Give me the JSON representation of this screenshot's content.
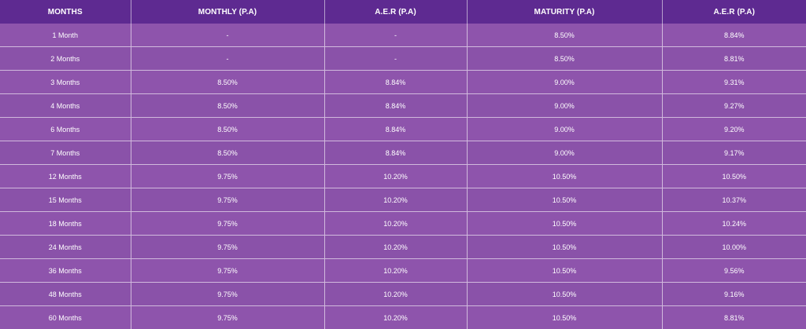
{
  "table": {
    "headers": [
      "MONTHS",
      "MONTHLY (P.A)",
      "A.E.R (P.A)",
      "MATURITY (P.A)",
      "A.E.R (P.A)"
    ],
    "rows": [
      [
        "1 Month",
        "-",
        "-",
        "8.50%",
        "8.84%"
      ],
      [
        "2 Months",
        "-",
        "-",
        "8.50%",
        "8.81%"
      ],
      [
        "3 Months",
        "8.50%",
        "8.84%",
        "9.00%",
        "9.31%"
      ],
      [
        "4 Months",
        "8.50%",
        "8.84%",
        "9.00%",
        "9.27%"
      ],
      [
        "6 Months",
        "8.50%",
        "8.84%",
        "9.00%",
        "9.20%"
      ],
      [
        "7 Months",
        "8.50%",
        "8.84%",
        "9.00%",
        "9.17%"
      ],
      [
        "12 Months",
        "9.75%",
        "10.20%",
        "10.50%",
        "10.50%"
      ],
      [
        "15 Months",
        "9.75%",
        "10.20%",
        "10.50%",
        "10.37%"
      ],
      [
        "18 Months",
        "9.75%",
        "10.20%",
        "10.50%",
        "10.24%"
      ],
      [
        "24 Months",
        "9.75%",
        "10.20%",
        "10.50%",
        "10.00%"
      ],
      [
        "36 Months",
        "9.75%",
        "10.20%",
        "10.50%",
        "9.56%"
      ],
      [
        "48 Months",
        "9.75%",
        "10.20%",
        "10.50%",
        "9.16%"
      ],
      [
        "60 Months",
        "9.75%",
        "10.20%",
        "10.50%",
        "8.81%"
      ]
    ]
  },
  "colors": {
    "header_bg": "#5e2a91",
    "row_bg": "#8e54ac",
    "text": "#ffffff",
    "grid": "#ffffff"
  }
}
